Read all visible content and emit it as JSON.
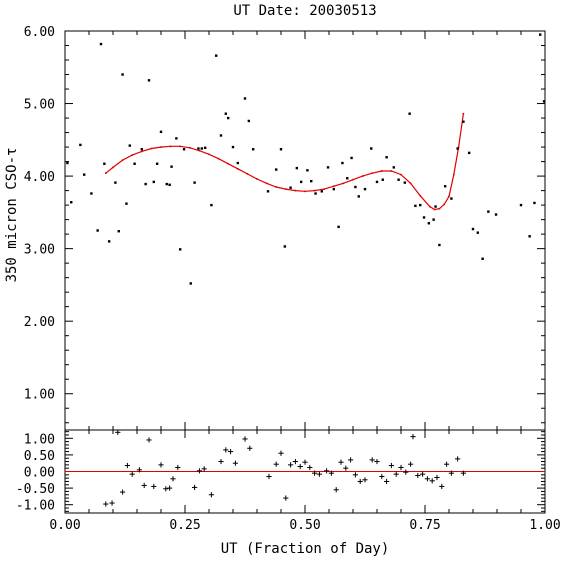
{
  "chart_data": {
    "type": "scatter",
    "title": "UT Date: 20030513",
    "xlabel": "UT (Fraction of Day)",
    "ylabel": "350 micron CSO-τ",
    "x_ticks": [
      "0.00",
      "0.25",
      "0.50",
      "0.75",
      "1.00"
    ],
    "xlim": [
      0.0,
      1.0
    ],
    "colors": {
      "fit": "#e00000",
      "points": "#000000",
      "axes": "#000000"
    },
    "main_panel": {
      "ylim": [
        0.5,
        6.0
      ],
      "y_ticks": [
        "1.00",
        "2.00",
        "3.00",
        "4.00",
        "5.00",
        "6.00"
      ],
      "points": {
        "x": [
          0.005,
          0.013,
          0.032,
          0.04,
          0.055,
          0.068,
          0.075,
          0.082,
          0.092,
          0.105,
          0.112,
          0.12,
          0.128,
          0.135,
          0.145,
          0.16,
          0.168,
          0.175,
          0.185,
          0.192,
          0.2,
          0.212,
          0.218,
          0.222,
          0.232,
          0.24,
          0.248,
          0.262,
          0.27,
          0.278,
          0.285,
          0.292,
          0.305,
          0.315,
          0.325,
          0.335,
          0.34,
          0.35,
          0.36,
          0.375,
          0.383,
          0.392,
          0.423,
          0.44,
          0.45,
          0.458,
          0.47,
          0.483,
          0.492,
          0.505,
          0.513,
          0.522,
          0.535,
          0.548,
          0.56,
          0.57,
          0.578,
          0.588,
          0.597,
          0.605,
          0.612,
          0.625,
          0.638,
          0.65,
          0.662,
          0.67,
          0.685,
          0.695,
          0.708,
          0.718,
          0.73,
          0.74,
          0.748,
          0.758,
          0.768,
          0.772,
          0.78,
          0.792,
          0.805,
          0.818,
          0.83,
          0.842,
          0.85,
          0.86,
          0.87,
          0.882,
          0.898,
          0.95,
          0.968,
          0.978,
          0.99,
          0.998
        ],
        "y": [
          4.18,
          3.64,
          4.43,
          4.02,
          3.76,
          3.25,
          5.82,
          4.17,
          3.1,
          3.91,
          3.24,
          5.4,
          3.62,
          4.42,
          4.17,
          4.37,
          3.89,
          5.32,
          3.92,
          4.17,
          4.61,
          3.89,
          3.88,
          4.13,
          4.52,
          2.99,
          4.37,
          2.52,
          3.91,
          4.38,
          4.38,
          4.39,
          3.6,
          5.66,
          4.56,
          4.86,
          4.8,
          4.4,
          4.18,
          5.07,
          4.76,
          4.37,
          3.79,
          4.09,
          4.37,
          3.03,
          3.84,
          4.11,
          3.92,
          4.08,
          3.93,
          3.76,
          3.79,
          4.12,
          3.82,
          3.3,
          4.18,
          3.97,
          4.25,
          3.85,
          3.72,
          3.82,
          4.38,
          3.92,
          3.95,
          4.26,
          4.12,
          3.95,
          3.91,
          4.86,
          3.59,
          3.6,
          3.43,
          3.35,
          3.4,
          3.58,
          3.05,
          3.86,
          3.69,
          4.38,
          4.75,
          4.32,
          3.27,
          3.22,
          2.86,
          3.51,
          3.47,
          3.6,
          3.17,
          3.63,
          5.95,
          5.03
        ]
      },
      "fit": {
        "x": [
          0.085,
          0.1,
          0.12,
          0.14,
          0.16,
          0.18,
          0.2,
          0.22,
          0.24,
          0.26,
          0.28,
          0.3,
          0.32,
          0.34,
          0.36,
          0.38,
          0.4,
          0.42,
          0.44,
          0.46,
          0.48,
          0.5,
          0.52,
          0.54,
          0.56,
          0.58,
          0.6,
          0.62,
          0.64,
          0.66,
          0.68,
          0.7,
          0.72,
          0.74,
          0.76,
          0.77,
          0.78,
          0.79,
          0.8,
          0.81,
          0.82,
          0.83
        ],
        "y": [
          4.04,
          4.12,
          4.22,
          4.29,
          4.34,
          4.38,
          4.4,
          4.41,
          4.41,
          4.39,
          4.35,
          4.3,
          4.24,
          4.17,
          4.1,
          4.03,
          3.96,
          3.9,
          3.85,
          3.82,
          3.8,
          3.79,
          3.8,
          3.82,
          3.86,
          3.9,
          3.95,
          4.0,
          4.04,
          4.07,
          4.07,
          4.02,
          3.9,
          3.73,
          3.58,
          3.54,
          3.55,
          3.61,
          3.72,
          4.02,
          4.4,
          4.86
        ]
      }
    },
    "residual_panel": {
      "ylim": [
        -1.25,
        1.25
      ],
      "y_ticks": [
        "1.00",
        "0.50",
        "0.00",
        "-0.50",
        "-1.00"
      ],
      "zero_line": 0.0,
      "points": {
        "x": [
          0.085,
          0.098,
          0.11,
          0.12,
          0.13,
          0.14,
          0.155,
          0.165,
          0.175,
          0.185,
          0.2,
          0.21,
          0.218,
          0.225,
          0.235,
          0.27,
          0.28,
          0.29,
          0.305,
          0.325,
          0.335,
          0.345,
          0.355,
          0.375,
          0.385,
          0.425,
          0.44,
          0.45,
          0.46,
          0.47,
          0.48,
          0.49,
          0.5,
          0.51,
          0.52,
          0.53,
          0.545,
          0.555,
          0.565,
          0.575,
          0.585,
          0.595,
          0.605,
          0.615,
          0.625,
          0.64,
          0.65,
          0.66,
          0.67,
          0.68,
          0.69,
          0.7,
          0.71,
          0.72,
          0.725,
          0.735,
          0.745,
          0.755,
          0.765,
          0.775,
          0.785,
          0.795,
          0.805,
          0.818,
          0.83
        ],
        "y": [
          -0.98,
          -0.95,
          1.18,
          -0.62,
          0.18,
          -0.08,
          0.05,
          -0.42,
          0.95,
          -0.45,
          0.2,
          -0.52,
          -0.5,
          -0.22,
          0.12,
          -0.48,
          0.02,
          0.08,
          -0.7,
          0.3,
          0.65,
          0.6,
          0.25,
          0.98,
          0.7,
          -0.15,
          0.22,
          0.55,
          -0.8,
          0.2,
          0.3,
          0.15,
          0.28,
          0.12,
          -0.05,
          -0.08,
          0.02,
          -0.05,
          -0.55,
          0.28,
          0.1,
          0.35,
          -0.1,
          -0.3,
          -0.25,
          0.35,
          0.3,
          -0.15,
          -0.3,
          0.18,
          -0.08,
          0.12,
          -0.02,
          0.22,
          1.05,
          -0.12,
          -0.08,
          -0.22,
          -0.28,
          -0.18,
          -0.45,
          0.22,
          -0.05,
          0.38,
          -0.05
        ]
      }
    }
  }
}
